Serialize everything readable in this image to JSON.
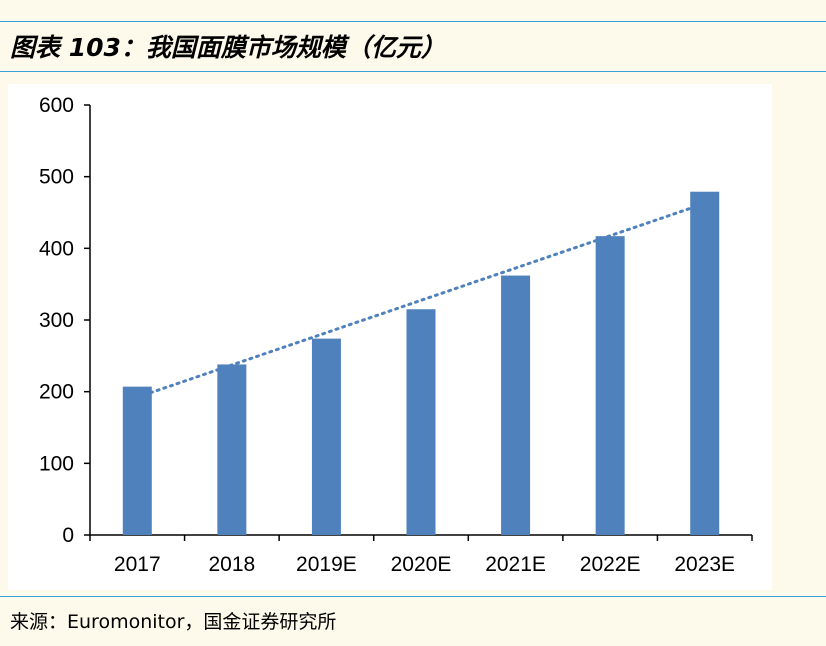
{
  "title": "图表 103：我国面膜市场规模（亿元）",
  "source": "来源：Euromonitor，国金证券研究所",
  "chart_data": {
    "type": "bar",
    "categories": [
      "2017",
      "2018",
      "2019E",
      "2020E",
      "2021E",
      "2022E",
      "2023E"
    ],
    "values": [
      207,
      238,
      274,
      315,
      362,
      417,
      479
    ],
    "ylim": [
      0,
      600
    ],
    "yticks": [
      0,
      100,
      200,
      300,
      400,
      500,
      600
    ],
    "trendline": "linear",
    "grid": false,
    "legend": "none",
    "bar_color": "#4f81bd",
    "trend_color": "#4f81bd"
  }
}
